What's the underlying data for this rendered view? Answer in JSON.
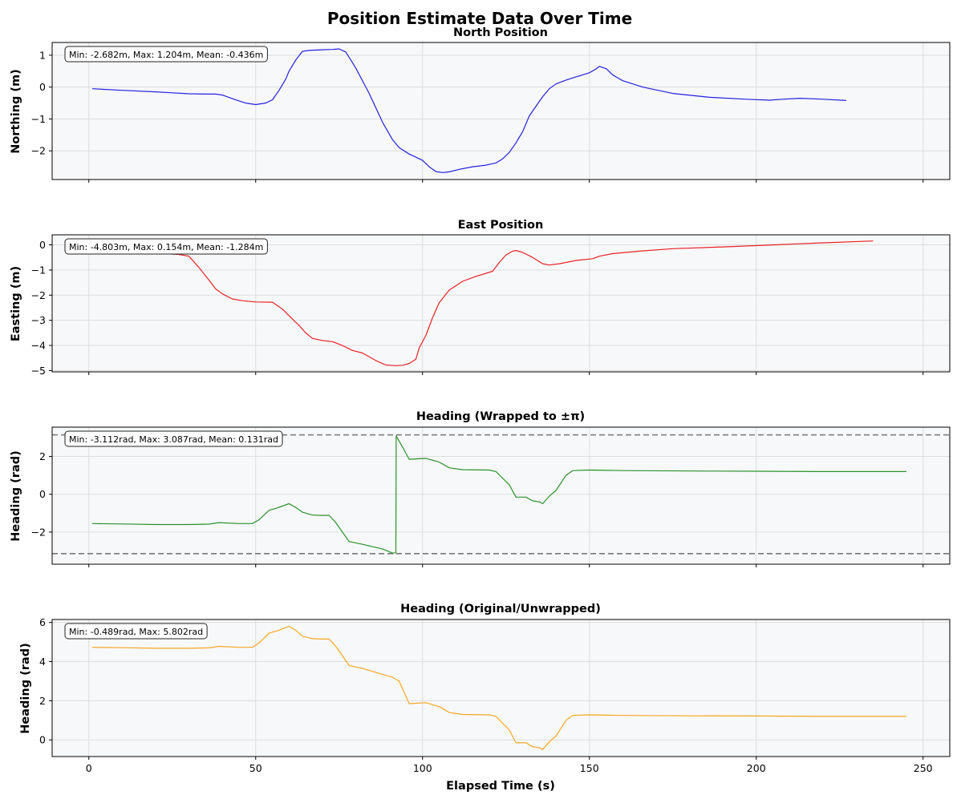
{
  "figure": {
    "title": "Position Estimate Data Over Time",
    "xlabel": "Elapsed Time (s)",
    "x_ticks": [
      0,
      50,
      100,
      150,
      200,
      250
    ],
    "xlim": [
      -11,
      258
    ]
  },
  "chart_data": [
    {
      "type": "line",
      "title": "North Position",
      "ylabel": "Northing (m)",
      "ylim": [
        -2.9,
        1.4
      ],
      "y_ticks": [
        1,
        0,
        -1,
        -2
      ],
      "grid": true,
      "color": "#2222dd",
      "stats": "Min: -2.682m, Max: 1.204m, Mean: -0.436m",
      "series": [
        {
          "x": [
            1,
            10,
            20,
            25,
            30,
            35,
            38,
            40,
            44,
            47,
            50,
            53,
            55,
            57,
            59,
            60,
            62,
            64,
            66,
            70,
            73,
            75,
            77,
            80,
            84,
            88,
            91,
            93,
            96,
            100,
            102,
            104,
            106,
            108,
            111,
            115,
            119,
            122,
            124,
            126,
            128,
            130,
            132,
            134,
            136,
            138,
            140,
            143,
            146,
            150,
            152,
            153,
            155,
            157,
            160,
            166,
            175,
            186,
            197,
            204,
            208,
            213,
            220,
            227
          ],
          "values": [
            -0.05,
            -0.1,
            -0.15,
            -0.18,
            -0.21,
            -0.22,
            -0.22,
            -0.25,
            -0.4,
            -0.5,
            -0.55,
            -0.5,
            -0.4,
            -0.1,
            0.25,
            0.5,
            0.85,
            1.12,
            1.15,
            1.17,
            1.18,
            1.2,
            1.1,
            0.6,
            -0.2,
            -1.1,
            -1.65,
            -1.9,
            -2.1,
            -2.3,
            -2.5,
            -2.65,
            -2.68,
            -2.66,
            -2.58,
            -2.5,
            -2.45,
            -2.38,
            -2.25,
            -2.05,
            -1.75,
            -1.4,
            -0.9,
            -0.6,
            -0.3,
            -0.05,
            0.1,
            0.22,
            0.32,
            0.45,
            0.57,
            0.65,
            0.58,
            0.38,
            0.2,
            0.0,
            -0.2,
            -0.32,
            -0.38,
            -0.41,
            -0.38,
            -0.35,
            -0.38,
            -0.42
          ]
        }
      ]
    },
    {
      "type": "line",
      "title": "East Position",
      "ylabel": "Easting (m)",
      "ylim": [
        -5.05,
        0.4
      ],
      "y_ticks": [
        0,
        -1,
        -2,
        -3,
        -4,
        -5
      ],
      "grid": true,
      "color": "#e82222",
      "stats": "Min: -4.803m, Max: 0.154m, Mean: -1.284m",
      "series": [
        {
          "x": [
            1,
            10,
            20,
            27,
            30,
            33,
            36,
            38,
            40,
            43,
            46,
            50,
            55,
            58,
            61,
            63,
            65,
            67,
            70,
            73,
            76,
            79,
            82,
            86,
            89,
            92,
            94,
            96,
            98,
            99,
            101,
            103,
            105,
            108,
            112,
            116,
            121,
            123,
            125,
            127,
            128,
            130,
            133,
            136,
            138,
            141,
            146,
            151,
            153,
            157,
            165,
            175,
            190,
            205,
            212,
            220,
            235
          ],
          "values": [
            -0.2,
            -0.28,
            -0.33,
            -0.38,
            -0.45,
            -0.9,
            -1.4,
            -1.75,
            -1.95,
            -2.15,
            -2.22,
            -2.27,
            -2.28,
            -2.55,
            -2.95,
            -3.2,
            -3.5,
            -3.72,
            -3.8,
            -3.85,
            -4.0,
            -4.2,
            -4.3,
            -4.6,
            -4.78,
            -4.8,
            -4.79,
            -4.72,
            -4.55,
            -4.1,
            -3.6,
            -2.9,
            -2.3,
            -1.8,
            -1.45,
            -1.25,
            -1.05,
            -0.7,
            -0.4,
            -0.25,
            -0.22,
            -0.3,
            -0.5,
            -0.75,
            -0.8,
            -0.75,
            -0.62,
            -0.55,
            -0.45,
            -0.35,
            -0.25,
            -0.15,
            -0.08,
            0.0,
            0.04,
            0.08,
            0.154
          ]
        }
      ]
    },
    {
      "type": "line",
      "title": "Heading (Wrapped to ±π)",
      "ylabel": "Heading (rad)",
      "ylim": [
        -3.7,
        3.55
      ],
      "y_ticks": [
        2,
        0,
        -2
      ],
      "grid": true,
      "color": "#2a922a",
      "reference_lines": [
        3.14159,
        -3.14159
      ],
      "stats": "Min: -3.112rad, Max: 3.087rad, Mean: 0.131rad",
      "series": [
        {
          "x": [
            1,
            10,
            20,
            30,
            36,
            39,
            45,
            49,
            51,
            54,
            56,
            60,
            62,
            64,
            67,
            70,
            72,
            74,
            78,
            82,
            88,
            91,
            92,
            92.1,
            94,
            96,
            101,
            105,
            108,
            112,
            120,
            122,
            126,
            128,
            131,
            133,
            135,
            136,
            138,
            140,
            143,
            145,
            150,
            160,
            180,
            200,
            220,
            245
          ],
          "values": [
            -1.55,
            -1.57,
            -1.6,
            -1.6,
            -1.58,
            -1.5,
            -1.55,
            -1.55,
            -1.35,
            -0.85,
            -0.75,
            -0.5,
            -0.7,
            -0.95,
            -1.1,
            -1.12,
            -1.12,
            -1.5,
            -2.5,
            -2.65,
            -2.9,
            -3.11,
            -3.1,
            3.087,
            2.5,
            1.85,
            1.9,
            1.7,
            1.4,
            1.3,
            1.28,
            1.2,
            0.5,
            -0.15,
            -0.15,
            -0.35,
            -0.4,
            -0.5,
            -0.1,
            0.2,
            1.0,
            1.25,
            1.28,
            1.25,
            1.23,
            1.22,
            1.2,
            1.2
          ]
        }
      ]
    },
    {
      "type": "line",
      "title": "Heading (Original/Unwrapped)",
      "ylabel": "Heading (rad)",
      "ylim": [
        -0.85,
        6.15
      ],
      "y_ticks": [
        6,
        4,
        2,
        0
      ],
      "grid": true,
      "color": "#f5a623",
      "stats": "Min: -0.489rad, Max: 5.802rad",
      "series": [
        {
          "x": [
            1,
            10,
            20,
            30,
            36,
            39,
            45,
            49,
            51,
            54,
            57,
            60,
            62,
            64,
            67,
            70,
            72,
            74,
            78,
            82,
            88,
            91,
            93,
            96,
            101,
            105,
            108,
            112,
            120,
            122,
            126,
            128,
            131,
            133,
            135,
            136,
            138,
            140,
            143,
            145,
            150,
            160,
            180,
            200,
            220,
            245
          ],
          "values": [
            4.73,
            4.71,
            4.68,
            4.68,
            4.7,
            4.78,
            4.73,
            4.73,
            4.95,
            5.45,
            5.6,
            5.8,
            5.6,
            5.3,
            5.17,
            5.15,
            5.15,
            4.78,
            3.8,
            3.65,
            3.35,
            3.2,
            3.0,
            1.85,
            1.9,
            1.7,
            1.4,
            1.3,
            1.28,
            1.2,
            0.5,
            -0.15,
            -0.15,
            -0.35,
            -0.4,
            -0.489,
            -0.1,
            0.2,
            1.0,
            1.25,
            1.28,
            1.25,
            1.23,
            1.22,
            1.2,
            1.2
          ]
        }
      ]
    }
  ]
}
